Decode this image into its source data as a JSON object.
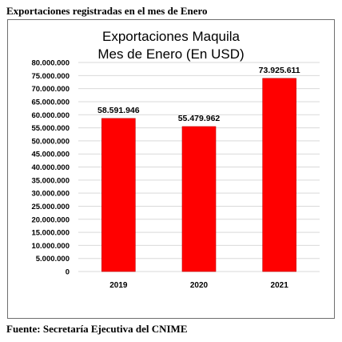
{
  "heading": "Exportaciones registradas en el mes de Enero",
  "footer": "Fuente: Secretaría Ejecutiva del CNIME",
  "chart_data": {
    "type": "bar",
    "title_lines": [
      "Exportaciones Maquila",
      "Mes de Enero (En USD)"
    ],
    "categories": [
      "2019",
      "2020",
      "2021"
    ],
    "values": [
      58591946,
      55479962,
      73925611
    ],
    "data_labels": [
      "58.591.946",
      "55.479.962",
      "73.925.611"
    ],
    "ylim": [
      0,
      80000000
    ],
    "y_ticks": [
      0,
      5000000,
      10000000,
      15000000,
      20000000,
      25000000,
      30000000,
      35000000,
      40000000,
      45000000,
      50000000,
      55000000,
      60000000,
      65000000,
      70000000,
      75000000,
      80000000
    ],
    "y_tick_labels": [
      "0",
      "5.000.000",
      "10.000.000",
      "15.000.000",
      "20.000.000",
      "25.000.000",
      "30.000.000",
      "35.000.000",
      "40.000.000",
      "45.000.000",
      "50.000.000",
      "55.000.000",
      "60.000.000",
      "65.000.000",
      "70.000.000",
      "75.000.000",
      "80.000.000"
    ],
    "grid": true,
    "legend": "none",
    "bar_color": "#ff0000"
  }
}
